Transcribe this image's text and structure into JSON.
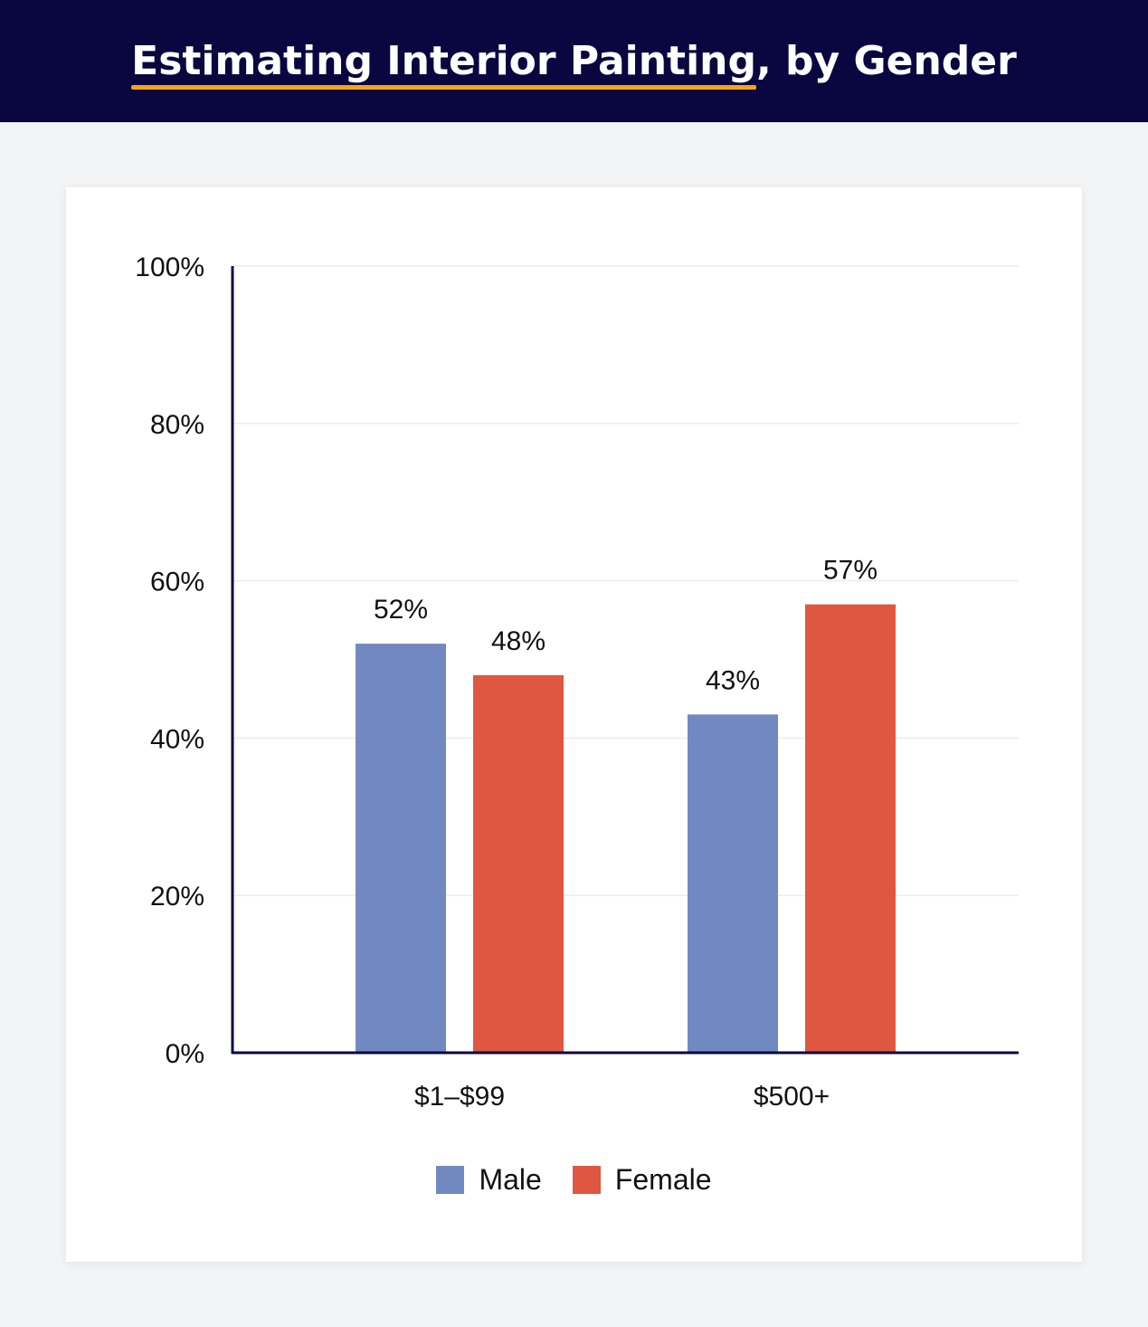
{
  "header": {
    "title_highlight": "Estimating Interior Painting",
    "title_rest": ", by Gender",
    "background": "#0a0640",
    "underline_color": "#f5a31a"
  },
  "chart_data": {
    "type": "bar",
    "title": "Estimating Interior Painting, by Gender",
    "categories": [
      "$1–$99",
      "$500+"
    ],
    "series": [
      {
        "name": "Male",
        "color": "#7189c0",
        "values": [
          52,
          43
        ]
      },
      {
        "name": "Female",
        "color": "#df5740",
        "values": [
          48,
          57
        ]
      }
    ],
    "value_labels": [
      [
        "52%",
        "43%"
      ],
      [
        "48%",
        "57%"
      ]
    ],
    "ylim": [
      0,
      100
    ],
    "yticks": [
      0,
      20,
      40,
      60,
      80,
      100
    ],
    "ytick_labels": [
      "0%",
      "20%",
      "40%",
      "60%",
      "80%",
      "100%"
    ],
    "xlabel": "",
    "ylabel": "",
    "grid": true,
    "legend": "bottom-center"
  },
  "legend": {
    "items": [
      {
        "label": "Male",
        "color": "#7189c0"
      },
      {
        "label": "Female",
        "color": "#df5740"
      }
    ]
  }
}
